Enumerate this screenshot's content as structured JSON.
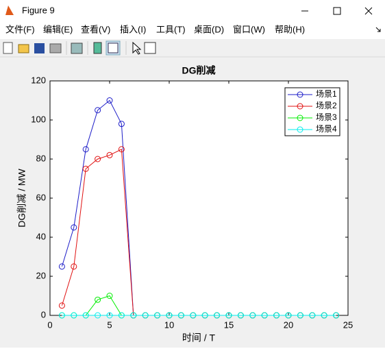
{
  "window": {
    "title": "Figure 9",
    "menu": [
      "文件(F)",
      "编辑(E)",
      "查看(V)",
      "插入(I)",
      "工具(T)",
      "桌面(D)",
      "窗口(W)",
      "帮助(H)"
    ]
  },
  "chart_data": {
    "type": "line",
    "title": "DG削减",
    "xlabel": "时间 / T",
    "ylabel": "DG削减 / MW",
    "x": [
      1,
      2,
      3,
      4,
      5,
      6,
      7,
      8,
      9,
      10,
      11,
      12,
      13,
      14,
      15,
      16,
      17,
      18,
      19,
      20,
      21,
      22,
      23,
      24
    ],
    "series": [
      {
        "name": "场景1",
        "color": "#1c1cc8",
        "values": [
          25,
          45,
          85,
          105,
          110,
          98,
          0,
          0,
          0,
          0,
          0,
          0,
          0,
          0,
          0,
          0,
          0,
          0,
          0,
          0,
          0,
          0,
          0,
          0
        ]
      },
      {
        "name": "场景2",
        "color": "#e01010",
        "values": [
          5,
          25,
          75,
          80,
          82,
          85,
          0,
          0,
          0,
          0,
          0,
          0,
          0,
          0,
          0,
          0,
          0,
          0,
          0,
          0,
          0,
          0,
          0,
          0
        ]
      },
      {
        "name": "场景3",
        "color": "#00ee00",
        "values": [
          0,
          0,
          0,
          8,
          10,
          0,
          0,
          0,
          0,
          0,
          0,
          0,
          0,
          0,
          0,
          0,
          0,
          0,
          0,
          0,
          0,
          0,
          0,
          0
        ]
      },
      {
        "name": "场景4",
        "color": "#00eeee",
        "values": [
          0,
          0,
          0,
          0,
          0,
          0,
          0,
          0,
          0,
          0,
          0,
          0,
          0,
          0,
          0,
          0,
          0,
          0,
          0,
          0,
          0,
          0,
          0,
          0
        ]
      }
    ],
    "xlim": [
      0,
      25
    ],
    "xticks": [
      0,
      5,
      10,
      15,
      20,
      25
    ],
    "ylim": [
      0,
      120
    ],
    "yticks": [
      0,
      20,
      40,
      60,
      80,
      100,
      120
    ],
    "legend": "northeast",
    "marker": "circle",
    "grid": false
  }
}
